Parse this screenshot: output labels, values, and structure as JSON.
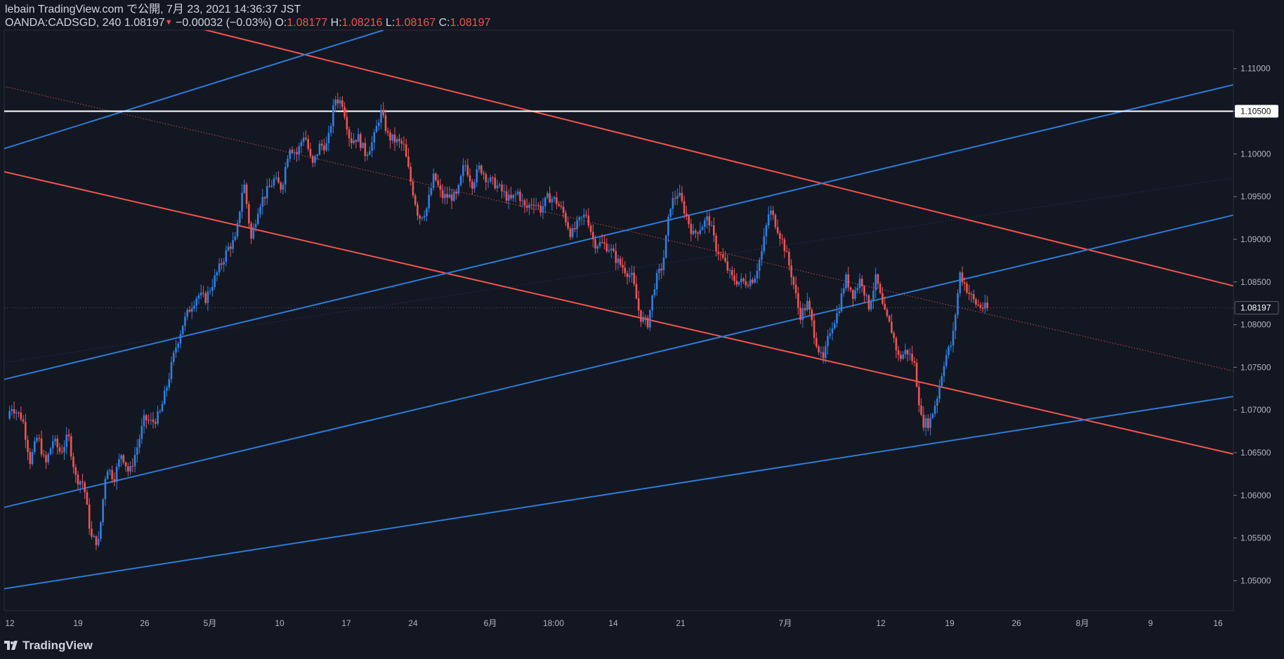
{
  "header": {
    "published": "lebain TradingView.com で公開, 7月 23, 2021 14:36:37 JST",
    "symbol": "OANDA:CADSGD, 240",
    "last": "1.08197",
    "arrow": "▼",
    "change": "−0.00032 (−0.03%)",
    "o_label": "O:",
    "o_value": "1.08177",
    "h_label": "H:",
    "h_value": "1.08216",
    "l_label": "L:",
    "l_value": "1.08167",
    "c_label": "C:",
    "c_value": "1.08197"
  },
  "footer": {
    "logo_text": "TradingView"
  },
  "colors": {
    "background": "#131722",
    "up": "#2f7fe0",
    "down": "#ef5350",
    "channel_red": "#f0554e",
    "channel_blue": "#2e7bd6",
    "level": "#ffffff"
  },
  "chart_data": {
    "type": "candlestick",
    "symbol": "OANDA:CADSGD",
    "interval": "240",
    "ylim": [
      1.0465,
      1.1145
    ],
    "y_ticks": [
      "1.05000",
      "1.05500",
      "1.06000",
      "1.06500",
      "1.07000",
      "1.07500",
      "1.08000",
      "1.08500",
      "1.09000",
      "1.09500",
      "1.10000",
      "1.10500",
      "1.11000"
    ],
    "x_ticks": [
      "12",
      "19",
      "26",
      "5月",
      "10",
      "17",
      "24",
      "6月",
      "18:00",
      "14",
      "21",
      "7月",
      "12",
      "19",
      "26",
      "8月",
      "9",
      "16"
    ],
    "horizontal_level": {
      "value": 1.105,
      "label": "1.10500"
    },
    "last_price": {
      "value": 1.08197,
      "label": "1.08197"
    },
    "price_path": [
      [
        0,
        1.069
      ],
      [
        0.5,
        1.0705
      ],
      [
        2,
        1.069
      ],
      [
        3,
        1.064
      ],
      [
        4,
        1.067
      ],
      [
        5,
        1.0635
      ],
      [
        6,
        1.0665
      ],
      [
        7,
        1.065
      ],
      [
        8,
        1.067
      ],
      [
        9,
        1.062
      ],
      [
        10,
        1.0615
      ],
      [
        11,
        1.055
      ],
      [
        12,
        1.0545
      ],
      [
        13,
        1.0635
      ],
      [
        14,
        1.062
      ],
      [
        15,
        1.065
      ],
      [
        16,
        1.0625
      ],
      [
        17,
        1.0655
      ],
      [
        18,
        1.069
      ],
      [
        19,
        1.0685
      ],
      [
        20,
        1.0695
      ],
      [
        21,
        1.073
      ],
      [
        22,
        1.077
      ],
      [
        23,
        1.08
      ],
      [
        24,
        1.082
      ],
      [
        25,
        1.0835
      ],
      [
        26,
        1.083
      ],
      [
        27,
        1.085
      ],
      [
        28,
        1.087
      ],
      [
        29,
        1.089
      ],
      [
        30,
        1.09
      ],
      [
        31,
        1.097
      ],
      [
        32,
        1.09
      ],
      [
        33,
        1.094
      ],
      [
        34,
        1.0955
      ],
      [
        35,
        1.097
      ],
      [
        36,
        1.096
      ],
      [
        37,
        1.101
      ],
      [
        38,
        1.1
      ],
      [
        39,
        1.1025
      ],
      [
        40,
        1.0985
      ],
      [
        41,
        1.101
      ],
      [
        42,
        1.101
      ],
      [
        43,
        1.1065
      ],
      [
        44,
        1.106
      ],
      [
        45,
        1.1015
      ],
      [
        46,
        1.102
      ],
      [
        47,
        1.1
      ],
      [
        48,
        1.1015
      ],
      [
        49,
        1.105
      ],
      [
        50,
        1.102
      ],
      [
        51,
        1.1015
      ],
      [
        52,
        1.101
      ],
      [
        53,
        1.0965
      ],
      [
        54,
        1.0925
      ],
      [
        55,
        1.0935
      ],
      [
        56,
        1.0975
      ],
      [
        57,
        1.095
      ],
      [
        58,
        1.095
      ],
      [
        59,
        1.095
      ],
      [
        60,
        1.099
      ],
      [
        61,
        1.0965
      ],
      [
        62,
        1.0985
      ],
      [
        63,
        1.097
      ],
      [
        64,
        1.0965
      ],
      [
        65,
        1.0955
      ],
      [
        66,
        1.0945
      ],
      [
        67,
        1.0955
      ],
      [
        68,
        1.0935
      ],
      [
        69,
        1.0945
      ],
      [
        70,
        1.0935
      ],
      [
        71,
        1.095
      ],
      [
        72,
        1.0945
      ],
      [
        73,
        1.093
      ],
      [
        74,
        1.0905
      ],
      [
        75,
        1.092
      ],
      [
        76,
        1.093
      ],
      [
        77,
        1.0895
      ],
      [
        78,
        1.0895
      ],
      [
        79,
        1.089
      ],
      [
        80,
        1.0875
      ],
      [
        81,
        1.0865
      ],
      [
        82,
        1.0855
      ],
      [
        83,
        1.081
      ],
      [
        84,
        1.08
      ],
      [
        85,
        1.085
      ],
      [
        86,
        1.087
      ],
      [
        87,
        1.094
      ],
      [
        88,
        1.0955
      ],
      [
        89,
        1.093
      ],
      [
        90,
        1.0905
      ],
      [
        91,
        1.0915
      ],
      [
        92,
        1.0925
      ],
      [
        93,
        1.089
      ],
      [
        94,
        1.0875
      ],
      [
        95,
        1.0855
      ],
      [
        96,
        1.085
      ],
      [
        97,
        1.085
      ],
      [
        98,
        1.0855
      ],
      [
        99,
        1.0885
      ],
      [
        100,
        1.0935
      ],
      [
        101,
        1.0915
      ],
      [
        102,
        1.089
      ],
      [
        103,
        1.0855
      ],
      [
        104,
        1.081
      ],
      [
        105,
        1.0825
      ],
      [
        106,
        1.0785
      ],
      [
        107,
        1.0755
      ],
      [
        108,
        1.0795
      ],
      [
        109,
        1.0815
      ],
      [
        110,
        1.0855
      ],
      [
        111,
        1.0835
      ],
      [
        112,
        1.0855
      ],
      [
        113,
        1.082
      ],
      [
        114,
        1.0855
      ],
      [
        115,
        1.0815
      ],
      [
        116,
        1.0795
      ],
      [
        117,
        1.076
      ],
      [
        118,
        1.077
      ],
      [
        119,
        1.0755
      ],
      [
        120,
        1.0685
      ],
      [
        121,
        1.0685
      ],
      [
        122,
        1.0715
      ],
      [
        123,
        1.076
      ],
      [
        124,
        1.078
      ],
      [
        125,
        1.086
      ],
      [
        126,
        1.084
      ],
      [
        127,
        1.0825
      ],
      [
        128,
        1.082
      ],
      [
        128.6,
        1.08197
      ]
    ],
    "trend_lines": [
      {
        "color": "red",
        "style": "solid",
        "x1": -1,
        "y1": 1.1205,
        "x2": 178,
        "y2": 1.0807
      },
      {
        "color": "red",
        "style": "solid",
        "x1": -1,
        "y1": 1.098,
        "x2": 178,
        "y2": 1.0613
      },
      {
        "color": "red",
        "style": "dotted",
        "x1": -1,
        "y1": 1.108,
        "x2": 178,
        "y2": 1.071
      },
      {
        "color": "blue",
        "style": "solid",
        "x1": -1,
        "y1": 1.1005,
        "x2": 49.2,
        "y2": 1.1145
      },
      {
        "color": "blue",
        "style": "solid",
        "x1": -1,
        "y1": 1.0735,
        "x2": 178,
        "y2": 1.1118
      },
      {
        "color": "blue",
        "style": "solid",
        "x1": -1,
        "y1": 1.0585,
        "x2": 178,
        "y2": 1.0965
      },
      {
        "color": "blue",
        "style": "solid",
        "x1": -1,
        "y1": 1.049,
        "x2": 178,
        "y2": 1.074
      },
      {
        "color": "blue",
        "style": "faint",
        "x1": -1,
        "y1": 1.0755,
        "x2": 178,
        "y2": 1.0995
      }
    ]
  }
}
